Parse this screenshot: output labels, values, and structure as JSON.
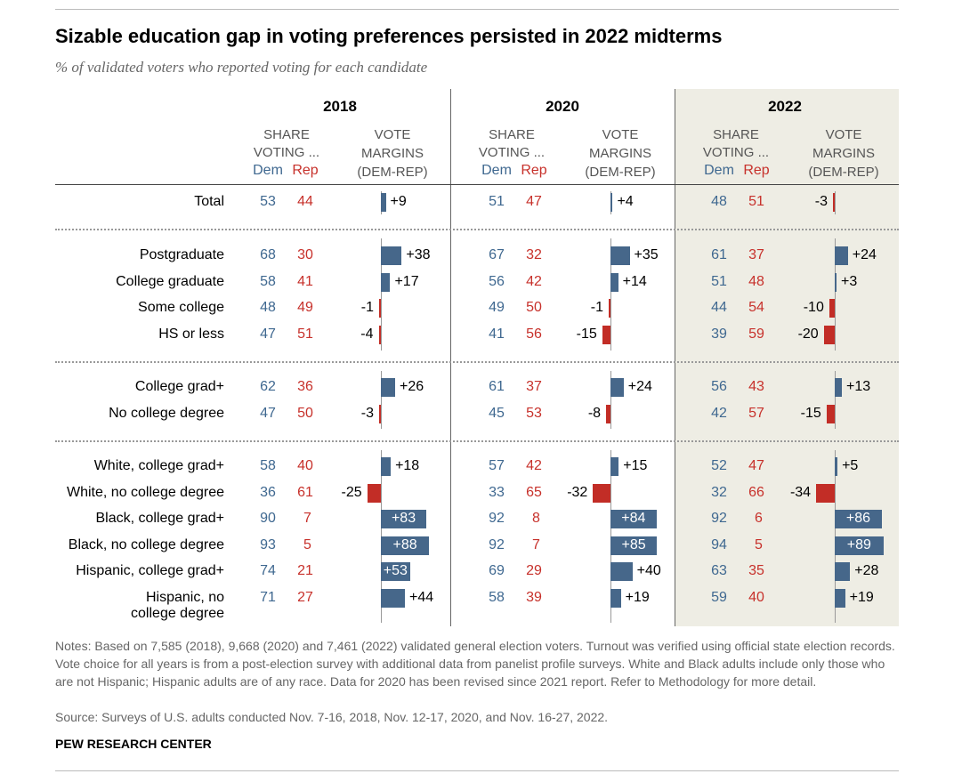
{
  "chart_data": {
    "type": "table",
    "title": "Sizable education gap in voting preferences persisted in 2022 midterms",
    "subtitle": "% of validated voters who reported voting for each candidate",
    "years": [
      "2018",
      "2020",
      "2022"
    ],
    "headers": {
      "share": [
        "SHARE",
        "VOTING ..."
      ],
      "dem": "Dem",
      "rep": "Rep",
      "margins": [
        "VOTE",
        "MARGINS",
        "(DEM-REP)"
      ]
    },
    "rows": [
      {
        "label": "Total",
        "group": 0,
        "values": [
          [
            53,
            44,
            "+9",
            9
          ],
          [
            51,
            47,
            "+4",
            4
          ],
          [
            48,
            51,
            "-3",
            -3
          ]
        ]
      },
      {
        "label": "Postgraduate",
        "group": 1,
        "values": [
          [
            68,
            30,
            "+38",
            38
          ],
          [
            67,
            32,
            "+35",
            35
          ],
          [
            61,
            37,
            "+24",
            24
          ]
        ]
      },
      {
        "label": "College graduate",
        "group": 1,
        "values": [
          [
            58,
            41,
            "+17",
            17
          ],
          [
            56,
            42,
            "+14",
            14
          ],
          [
            51,
            48,
            "+3",
            3
          ]
        ]
      },
      {
        "label": "Some college",
        "group": 1,
        "values": [
          [
            48,
            49,
            "-1",
            -1
          ],
          [
            49,
            50,
            "-1",
            -1
          ],
          [
            44,
            54,
            "-10",
            -10
          ]
        ]
      },
      {
        "label": "HS or less",
        "group": 1,
        "values": [
          [
            47,
            51,
            "-4",
            -4
          ],
          [
            41,
            56,
            "-15",
            -15
          ],
          [
            39,
            59,
            "-20",
            -20
          ]
        ]
      },
      {
        "label": "College grad+",
        "group": 2,
        "values": [
          [
            62,
            36,
            "+26",
            26
          ],
          [
            61,
            37,
            "+24",
            24
          ],
          [
            56,
            43,
            "+13",
            13
          ]
        ]
      },
      {
        "label": "No college degree",
        "group": 2,
        "values": [
          [
            47,
            50,
            "-3",
            -3
          ],
          [
            45,
            53,
            "-8",
            -8
          ],
          [
            42,
            57,
            "-15",
            -15
          ]
        ]
      },
      {
        "label": "White, college grad+",
        "group": 3,
        "values": [
          [
            58,
            40,
            "+18",
            18
          ],
          [
            57,
            42,
            "+15",
            15
          ],
          [
            52,
            47,
            "+5",
            5
          ]
        ]
      },
      {
        "label": "White, no college degree",
        "group": 3,
        "values": [
          [
            36,
            61,
            "-25",
            -25
          ],
          [
            33,
            65,
            "-32",
            -32
          ],
          [
            32,
            66,
            "-34",
            -34
          ]
        ]
      },
      {
        "label": "Black, college grad+",
        "group": 3,
        "values": [
          [
            90,
            7,
            "+83",
            83
          ],
          [
            92,
            8,
            "+84",
            84
          ],
          [
            92,
            6,
            "+86",
            86
          ]
        ]
      },
      {
        "label": "Black, no college degree",
        "group": 3,
        "values": [
          [
            93,
            5,
            "+88",
            88
          ],
          [
            92,
            7,
            "+85",
            85
          ],
          [
            94,
            5,
            "+89",
            89
          ]
        ]
      },
      {
        "label": "Hispanic, college grad+",
        "group": 3,
        "values": [
          [
            74,
            21,
            "+53",
            53
          ],
          [
            69,
            29,
            "+40",
            40
          ],
          [
            63,
            35,
            "+28",
            28
          ]
        ]
      },
      {
        "label": "Hispanic, no college degree",
        "label_lines": [
          "Hispanic, no",
          "college degree"
        ],
        "group": 3,
        "values": [
          [
            71,
            27,
            "+44",
            44
          ],
          [
            58,
            39,
            "+19",
            19
          ],
          [
            59,
            40,
            "+19",
            19
          ]
        ]
      }
    ],
    "highlighted_year": "2022",
    "colors": {
      "dem": "#3f6890",
      "rep": "#c7312b",
      "bar_dem": "#46678a",
      "bar_rep": "#c22d26",
      "highlight": "#eeede4"
    }
  },
  "notes": "Notes: Based on 7,585 (2018), 9,668 (2020) and 7,461 (2022) validated general election voters. Turnout was verified using official state election records. Vote choice for all years is from a post-election survey with additional data from panelist profile surveys. White and Black adults include only those who are not Hispanic; Hispanic adults are of any race. Data for 2020 has been revised since 2021 report. Refer to Methodology for more detail.",
  "source": "Source: Surveys of U.S. adults conducted Nov. 7-16, 2018, Nov. 12-17, 2020, and Nov. 16-27, 2022.",
  "brand": "PEW RESEARCH CENTER"
}
